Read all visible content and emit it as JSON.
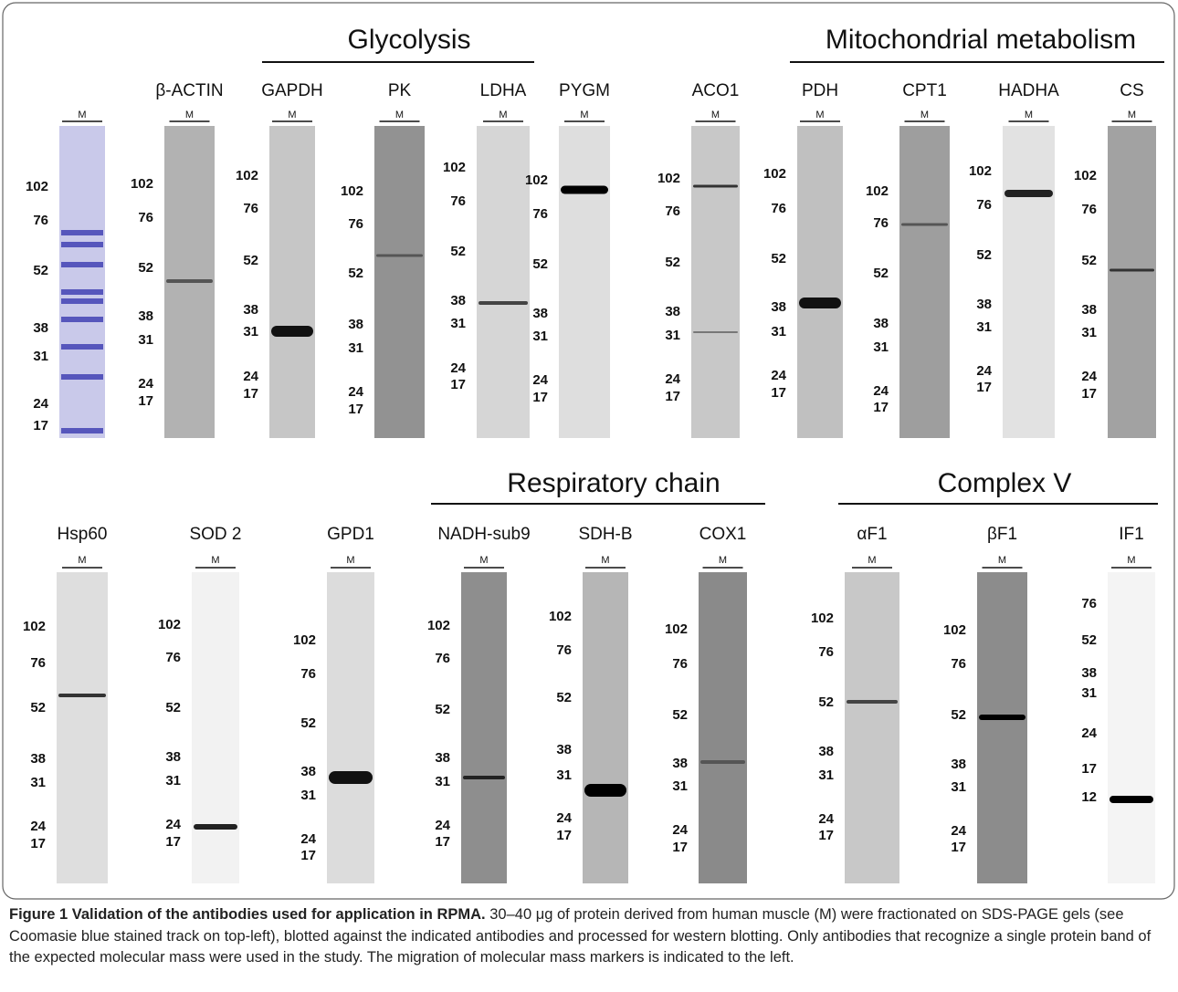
{
  "figure": {
    "groups": [
      "Glycolysis",
      "Mitochondrial metabolism",
      "Respiratory chain",
      "Complex V"
    ],
    "blots": [
      {
        "lane": "M",
        "markers": [
          "102",
          "76",
          "52",
          "38",
          "31",
          "24",
          "17"
        ]
      },
      {
        "label": "β-ACTIN",
        "lane": "M",
        "markers": [
          "102",
          "76",
          "52",
          "38",
          "31",
          "24",
          "17"
        ]
      },
      {
        "label": "GAPDH",
        "lane": "M",
        "markers": [
          "102",
          "76",
          "52",
          "38",
          "31",
          "24",
          "17"
        ]
      },
      {
        "label": "PK",
        "lane": "M",
        "markers": [
          "102",
          "76",
          "52",
          "38",
          "31",
          "24",
          "17"
        ]
      },
      {
        "label": "LDHA",
        "lane": "M",
        "markers": [
          "102",
          "76",
          "52",
          "38",
          "31",
          "24",
          "17"
        ]
      },
      {
        "label": "PYGM",
        "lane": "M",
        "markers": [
          "102",
          "76",
          "52",
          "38",
          "31",
          "24",
          "17"
        ]
      },
      {
        "label": "ACO1",
        "lane": "M",
        "markers": [
          "102",
          "76",
          "52",
          "38",
          "31",
          "24",
          "17"
        ]
      },
      {
        "label": "PDH",
        "lane": "M",
        "markers": [
          "102",
          "76",
          "52",
          "38",
          "31",
          "24",
          "17"
        ]
      },
      {
        "label": "CPT1",
        "lane": "M",
        "markers": [
          "102",
          "76",
          "52",
          "38",
          "31",
          "24",
          "17"
        ]
      },
      {
        "label": "HADHA",
        "lane": "M",
        "markers": [
          "102",
          "76",
          "52",
          "38",
          "31",
          "24",
          "17"
        ]
      },
      {
        "label": "CS",
        "lane": "M",
        "markers": [
          "102",
          "76",
          "52",
          "38",
          "31",
          "24",
          "17"
        ]
      },
      {
        "label": "Hsp60",
        "lane": "M",
        "markers": [
          "102",
          "76",
          "52",
          "38",
          "31",
          "24",
          "17"
        ]
      },
      {
        "label": "SOD 2",
        "lane": "M",
        "markers": [
          "102",
          "76",
          "52",
          "38",
          "31",
          "24",
          "17"
        ]
      },
      {
        "label": "GPD1",
        "lane": "M",
        "markers": [
          "102",
          "76",
          "52",
          "38",
          "31",
          "24",
          "17"
        ]
      },
      {
        "label": "NADH-sub9",
        "lane": "M",
        "markers": [
          "102",
          "76",
          "52",
          "38",
          "31",
          "24",
          "17"
        ]
      },
      {
        "label": "SDH-B",
        "lane": "M",
        "markers": [
          "102",
          "76",
          "52",
          "38",
          "31",
          "24",
          "17"
        ]
      },
      {
        "label": "COX1",
        "lane": "M",
        "markers": [
          "102",
          "76",
          "52",
          "38",
          "31",
          "24",
          "17"
        ]
      },
      {
        "label": "αF1",
        "lane": "M",
        "markers": [
          "102",
          "76",
          "52",
          "38",
          "31",
          "24",
          "17"
        ]
      },
      {
        "label": "βF1",
        "lane": "M",
        "markers": [
          "102",
          "76",
          "52",
          "38",
          "31",
          "24",
          "17"
        ]
      },
      {
        "label": "IF1",
        "lane": "M",
        "markers": [
          "76",
          "52",
          "38",
          "31",
          "24",
          "17",
          "12"
        ]
      }
    ],
    "caption": {
      "title": "Figure 1 Validation of the antibodies used for application in RPMA.",
      "text": "30–40 μg of protein derived from human muscle (M) were fractionated on SDS-PAGE gels (see Coomasie blue stained track on top-left), blotted against the indicated antibodies and processed for western blotting. Only antibodies that recognize a single protein band of the expected molecular mass were used in the study. The migration of molecular mass markers is indicated to the left."
    }
  }
}
